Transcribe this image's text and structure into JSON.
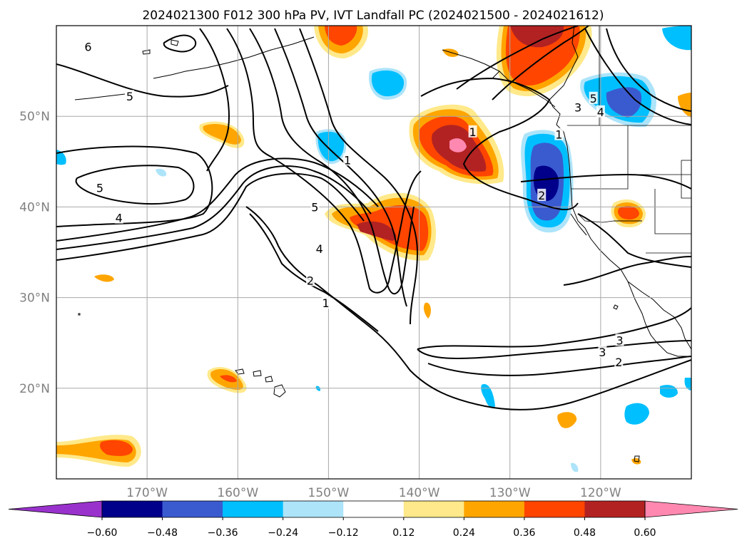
{
  "chart_data": {
    "type": "contour_map",
    "title": "2024021300 F012 300 hPa PV, IVT Landfall PC (2024021500 - 2024021612)",
    "x_axis": {
      "range": [
        -180,
        -110
      ],
      "tick_values": [
        -170,
        -160,
        -150,
        -140,
        -130,
        -120
      ],
      "tick_labels": [
        "170°W",
        "160°W",
        "150°W",
        "140°W",
        "130°W",
        "120°W"
      ]
    },
    "y_axis": {
      "range": [
        10,
        60
      ],
      "tick_values": [
        20,
        30,
        40,
        50
      ],
      "tick_labels": [
        "20°N",
        "30°N",
        "40°N",
        "50°N"
      ]
    },
    "grid": true,
    "colorbar": {
      "orientation": "horizontal",
      "extend": "both",
      "levels": [
        -0.6,
        -0.48,
        -0.36,
        -0.24,
        -0.12,
        0.12,
        0.24,
        0.36,
        0.48,
        0.6
      ],
      "tick_labels": [
        "−0.60",
        "−0.48",
        "−0.36",
        "−0.24",
        "−0.12",
        "0.12",
        "0.24",
        "0.36",
        "0.48",
        "0.60"
      ],
      "colors": [
        "#9932cc",
        "#00008b",
        "#3a5bd0",
        "#00bfff",
        "#ade4fa",
        "#ffffff",
        "#ffe98a",
        "#ffa500",
        "#ff4500",
        "#b22222",
        "#ff88b0"
      ]
    },
    "pv_contour_labels": [
      {
        "text": "6",
        "lon": -176.5,
        "lat": 57.7
      },
      {
        "text": "5",
        "lon": -171.9,
        "lat": 52.2
      },
      {
        "text": "5",
        "lon": -175.2,
        "lat": 42.1
      },
      {
        "text": "4",
        "lon": -173.1,
        "lat": 38.8
      },
      {
        "text": "1",
        "lon": -147.9,
        "lat": 45.2
      },
      {
        "text": "5",
        "lon": -151.5,
        "lat": 40.0
      },
      {
        "text": "4",
        "lon": -151.0,
        "lat": 35.4
      },
      {
        "text": "2",
        "lon": -152.0,
        "lat": 31.9
      },
      {
        "text": "1",
        "lon": -150.3,
        "lat": 29.4
      },
      {
        "text": "1",
        "lon": -134.1,
        "lat": 48.3
      },
      {
        "text": "2",
        "lon": -126.5,
        "lat": 41.3
      },
      {
        "text": "3",
        "lon": -122.5,
        "lat": 51.0
      },
      {
        "text": "5",
        "lon": -120.8,
        "lat": 52.0
      },
      {
        "text": "4",
        "lon": -120.0,
        "lat": 50.5
      },
      {
        "text": "1",
        "lon": -124.6,
        "lat": 48.0
      },
      {
        "text": "3",
        "lon": -119.8,
        "lat": 24.0
      },
      {
        "text": "3",
        "lon": -117.9,
        "lat": 25.3
      },
      {
        "text": "2",
        "lon": -118.0,
        "lat": 22.9
      }
    ],
    "pc_anomalies": [
      {
        "name": "NE Pacific positive",
        "lon": -136.5,
        "lat": 47.0,
        "value": 0.62
      },
      {
        "name": "Central Pacific positive",
        "lon": -143.0,
        "lat": 37.5,
        "value": 0.5
      },
      {
        "name": "Alaska positive",
        "lon": -127.0,
        "lat": 57.5,
        "value": 0.5
      },
      {
        "name": "Gulf of Alaska positive",
        "lon": -151.0,
        "lat": 57.5,
        "value": 0.4
      },
      {
        "name": "North Pacific positive",
        "lon": -160.0,
        "lat": 48.0,
        "value": 0.3
      },
      {
        "name": "Near Hawaii positive",
        "lon": -161.0,
        "lat": 21.0,
        "value": 0.36
      },
      {
        "name": "Tropical west positive",
        "lon": -175.0,
        "lat": 13.2,
        "value": 0.4
      },
      {
        "name": "Nevada positive",
        "lon": -117.0,
        "lat": 39.0,
        "value": 0.4
      },
      {
        "name": "California negative",
        "lon": -126.5,
        "lat": 42.5,
        "value": -0.55
      },
      {
        "name": "British Columbia negative",
        "lon": -121.5,
        "lat": 52.0,
        "value": -0.4
      },
      {
        "name": "Gulf negative",
        "lon": -146.5,
        "lat": 54.0,
        "value": -0.28
      },
      {
        "name": "Off Oregon negative",
        "lon": -149.5,
        "lat": 48.0,
        "value": -0.3
      }
    ]
  }
}
